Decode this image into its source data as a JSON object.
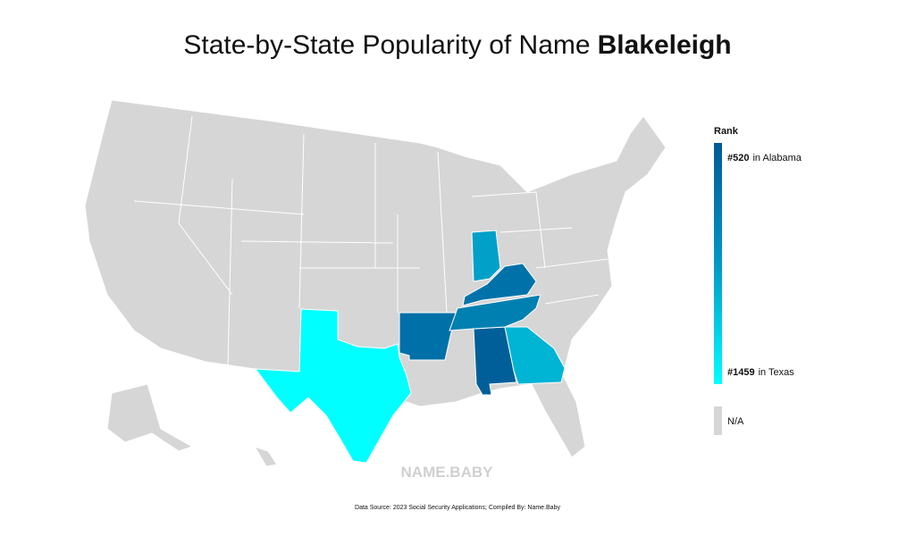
{
  "title": {
    "prefix": "State-by-State Popularity of Name",
    "name": "Blakeleigh"
  },
  "legend": {
    "title": "Rank",
    "top": {
      "rank": "#520",
      "state": "in Alabama"
    },
    "bottom": {
      "rank": "#1459",
      "state": "in Texas"
    },
    "na": "N/A"
  },
  "watermark": "NAME.BABY",
  "source": "Data Source: 2023 Social Security Applications; Compiled By: Name.Baby"
}
